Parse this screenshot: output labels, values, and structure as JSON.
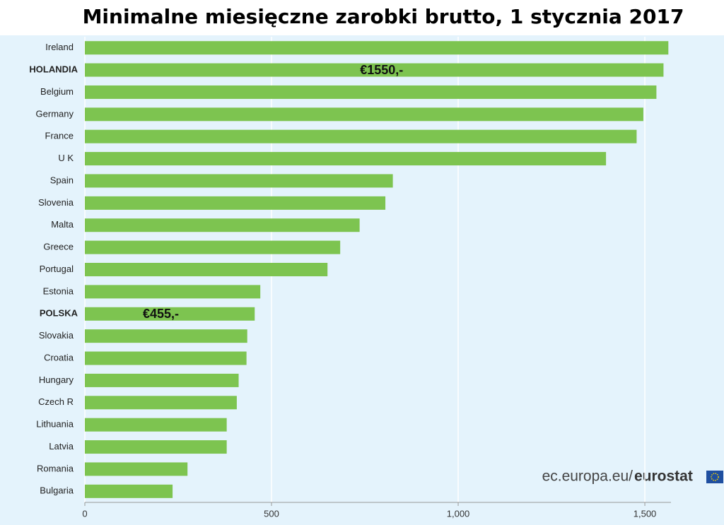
{
  "chart_data": {
    "type": "bar",
    "orientation": "horizontal",
    "title": "Minimalne miesięczne zarobki brutto, 1 stycznia 2017",
    "categories": [
      "Ireland",
      "HOLANDIA",
      "Belgium",
      "Germany",
      "France",
      "U K",
      "Spain",
      "Slovenia",
      "Malta",
      "Greece",
      "Portugal",
      "Estonia",
      "POLSKA",
      "Slovakia",
      "Croatia",
      "Hungary",
      "Czech R",
      "Lithuania",
      "Latvia",
      "Romania",
      "Bulgaria"
    ],
    "values": [
      1563,
      1550,
      1531,
      1496,
      1478,
      1396,
      825,
      805,
      736,
      684,
      650,
      470,
      455,
      435,
      433,
      412,
      407,
      380,
      380,
      275,
      235
    ],
    "value_labels": [
      null,
      "€1550,-",
      null,
      null,
      null,
      null,
      null,
      null,
      null,
      null,
      null,
      null,
      "€455,-",
      null,
      null,
      null,
      null,
      null,
      null,
      null,
      null
    ],
    "color": "#7dc450",
    "xlim": [
      0,
      1570
    ],
    "xticks": [
      0,
      500,
      {
        "value": 1000,
        "label": "1,000"
      },
      {
        "value": 1500,
        "label": "1,500"
      }
    ],
    "grid": true,
    "source": [
      "ec.europa.eu/",
      "eurostat"
    ]
  }
}
